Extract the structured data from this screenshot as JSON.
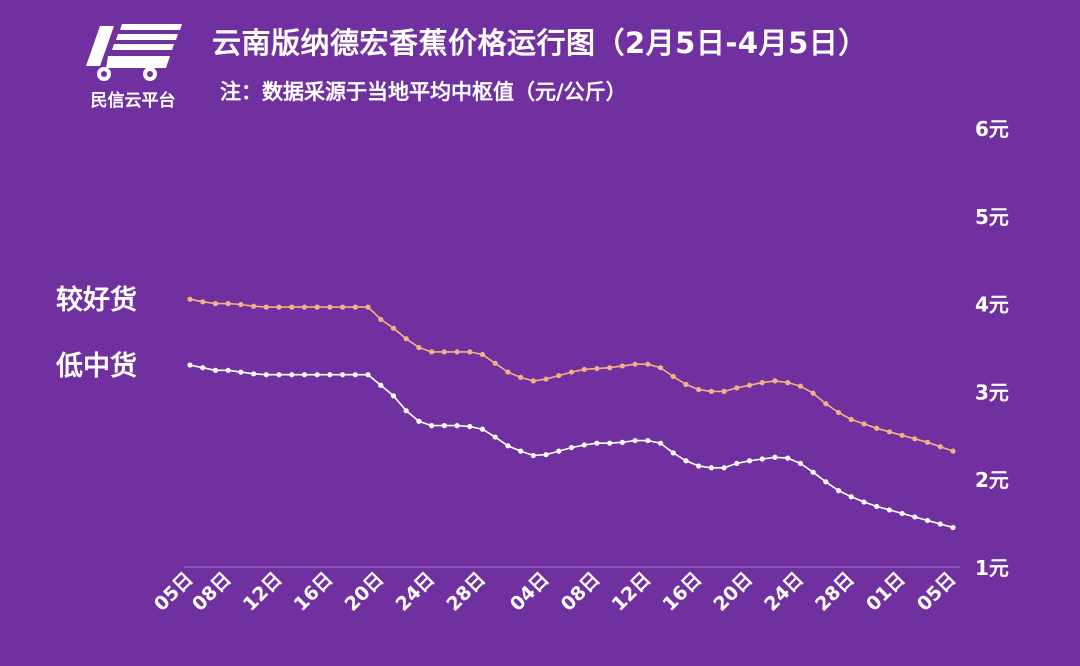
{
  "brand": {
    "name": "民信云平台"
  },
  "chart_data": {
    "type": "line",
    "title": "云南版纳德宏香蕉价格运行图（2月5日-4月5日）",
    "subtitle": "注：数据采源于当地平均中枢值（元/公斤）",
    "ylim": [
      1,
      6
    ],
    "y_ticks": [
      "1元",
      "2元",
      "3元",
      "4元",
      "5元",
      "6元"
    ],
    "x_tick_labels": [
      "05日",
      "08日",
      "12日",
      "16日",
      "20日",
      "24日",
      "28日",
      "04日",
      "08日",
      "12日",
      "16日",
      "20日",
      "24日",
      "28日",
      "01日",
      "05日"
    ],
    "x_tick_index": [
      0,
      3,
      7,
      11,
      15,
      19,
      23,
      28,
      32,
      36,
      40,
      44,
      48,
      52,
      56,
      60
    ],
    "grid": false,
    "legend_position": "left",
    "series": [
      {
        "name": "较好货",
        "color": "#f4b183",
        "values": [
          4.05,
          4.02,
          4.0,
          4.0,
          3.99,
          3.97,
          3.96,
          3.96,
          3.96,
          3.96,
          3.96,
          3.96,
          3.96,
          3.96,
          3.96,
          3.82,
          3.72,
          3.6,
          3.5,
          3.45,
          3.45,
          3.45,
          3.45,
          3.42,
          3.32,
          3.22,
          3.16,
          3.12,
          3.14,
          3.18,
          3.22,
          3.25,
          3.26,
          3.27,
          3.29,
          3.31,
          3.31,
          3.27,
          3.17,
          3.08,
          3.02,
          3.0,
          3.0,
          3.04,
          3.07,
          3.1,
          3.12,
          3.1,
          3.06,
          2.98,
          2.86,
          2.76,
          2.68,
          2.63,
          2.58,
          2.54,
          2.5,
          2.46,
          2.42,
          2.37,
          2.32
        ]
      },
      {
        "name": "低中货",
        "color": "#ffffff",
        "values": [
          3.3,
          3.27,
          3.24,
          3.24,
          3.22,
          3.2,
          3.19,
          3.19,
          3.19,
          3.19,
          3.19,
          3.19,
          3.19,
          3.19,
          3.19,
          3.07,
          2.95,
          2.78,
          2.66,
          2.61,
          2.61,
          2.61,
          2.6,
          2.57,
          2.48,
          2.38,
          2.32,
          2.27,
          2.28,
          2.32,
          2.36,
          2.39,
          2.41,
          2.41,
          2.42,
          2.44,
          2.44,
          2.41,
          2.3,
          2.21,
          2.15,
          2.13,
          2.13,
          2.18,
          2.21,
          2.23,
          2.25,
          2.24,
          2.18,
          2.08,
          1.97,
          1.87,
          1.8,
          1.74,
          1.69,
          1.65,
          1.61,
          1.57,
          1.53,
          1.49,
          1.45
        ]
      }
    ]
  }
}
